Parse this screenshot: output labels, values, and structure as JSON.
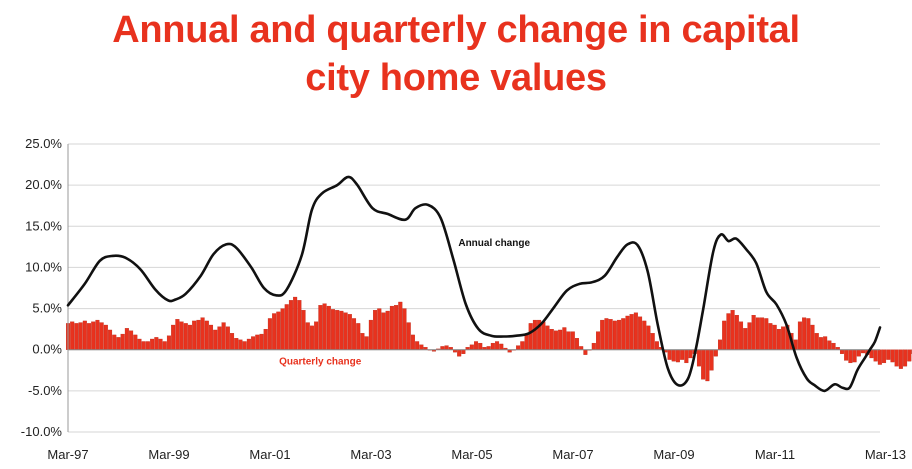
{
  "chart_data": {
    "type": "bar+line",
    "title": "Annual and quarterly change in capital city home values",
    "title_lines": [
      "Annual and quarterly change in",
      "city home values"
    ],
    "title_line1_main": "Annual and quarterly change in",
    "title_line1_end": " capital",
    "x_tick_labels": [
      "Mar-97",
      "Mar-99",
      "Mar-01",
      "Mar-03",
      "Mar-05",
      "Mar-07",
      "Mar-09",
      "Mar-11",
      "Mar-13"
    ],
    "x_range": [
      1997.17,
      2013.25
    ],
    "y_tick_labels": [
      "25.0%",
      "20.0%",
      "15.0%",
      "10.0%",
      "5.0%",
      "0.0%",
      "-5.0%",
      "-10.0%"
    ],
    "ylim": [
      -10,
      25
    ],
    "grid": "horizontal",
    "annotations": [
      {
        "text": "Annual change",
        "color": "#111111"
      },
      {
        "text": "Quarterly change",
        "color": "#e8321e"
      }
    ],
    "series": [
      {
        "name": "Annual change",
        "type": "line",
        "color": "#111111",
        "points": [
          [
            1997.17,
            5.4
          ],
          [
            1997.5,
            8.0
          ],
          [
            1997.8,
            10.8
          ],
          [
            1998.05,
            11.4
          ],
          [
            1998.3,
            11.2
          ],
          [
            1998.6,
            9.8
          ],
          [
            1998.9,
            7.3
          ],
          [
            1999.15,
            6.0
          ],
          [
            1999.3,
            6.1
          ],
          [
            1999.5,
            6.8
          ],
          [
            1999.8,
            9.0
          ],
          [
            2000.05,
            11.6
          ],
          [
            2000.3,
            12.8
          ],
          [
            2000.5,
            12.4
          ],
          [
            2000.8,
            10.0
          ],
          [
            2001.05,
            7.5
          ],
          [
            2001.3,
            6.6
          ],
          [
            2001.5,
            7.3
          ],
          [
            2001.8,
            11.5
          ],
          [
            2002.0,
            17.0
          ],
          [
            2002.2,
            19.0
          ],
          [
            2002.5,
            20.0
          ],
          [
            2002.72,
            21.0
          ],
          [
            2002.9,
            20.0
          ],
          [
            2003.2,
            17.2
          ],
          [
            2003.5,
            16.5
          ],
          [
            2003.85,
            15.8
          ],
          [
            2004.05,
            17.2
          ],
          [
            2004.3,
            17.6
          ],
          [
            2004.55,
            16.0
          ],
          [
            2004.8,
            11.0
          ],
          [
            2005.05,
            5.5
          ],
          [
            2005.3,
            2.5
          ],
          [
            2005.55,
            1.7
          ],
          [
            2005.8,
            1.6
          ],
          [
            2006.05,
            1.7
          ],
          [
            2006.3,
            2.0
          ],
          [
            2006.55,
            3.2
          ],
          [
            2006.8,
            5.2
          ],
          [
            2007.05,
            7.2
          ],
          [
            2007.3,
            8.0
          ],
          [
            2007.55,
            8.2
          ],
          [
            2007.8,
            9.0
          ],
          [
            2008.05,
            11.3
          ],
          [
            2008.25,
            12.8
          ],
          [
            2008.45,
            12.7
          ],
          [
            2008.65,
            9.5
          ],
          [
            2008.85,
            3.0
          ],
          [
            2009.05,
            -2.3
          ],
          [
            2009.25,
            -4.3
          ],
          [
            2009.45,
            -3.5
          ],
          [
            2009.6,
            0.0
          ],
          [
            2009.75,
            5.0
          ],
          [
            2009.95,
            12.0
          ],
          [
            2010.1,
            14.0
          ],
          [
            2010.25,
            13.2
          ],
          [
            2010.4,
            13.5
          ],
          [
            2010.6,
            12.2
          ],
          [
            2010.8,
            10.5
          ],
          [
            2011.0,
            7.0
          ],
          [
            2011.2,
            5.5
          ],
          [
            2011.4,
            3.0
          ],
          [
            2011.6,
            -1.0
          ],
          [
            2011.8,
            -3.5
          ],
          [
            2011.95,
            -4.3
          ],
          [
            2012.15,
            -5.0
          ],
          [
            2012.35,
            -4.2
          ],
          [
            2012.5,
            -4.6
          ],
          [
            2012.65,
            -4.6
          ],
          [
            2012.8,
            -2.5
          ],
          [
            2012.95,
            -1.0
          ],
          [
            2013.05,
            0.0
          ],
          [
            2013.15,
            1.0
          ],
          [
            2013.25,
            2.7
          ]
        ]
      },
      {
        "name": "Quarterly change",
        "type": "bar",
        "color": "#e8321e",
        "start": 1997.17,
        "step": 0.0833,
        "values": [
          3.2,
          3.4,
          3.2,
          3.3,
          3.5,
          3.2,
          3.4,
          3.6,
          3.3,
          3.0,
          2.4,
          1.8,
          1.5,
          1.9,
          2.6,
          2.3,
          1.8,
          1.3,
          1.0,
          1.0,
          1.3,
          1.5,
          1.3,
          1.0,
          1.7,
          3.0,
          3.7,
          3.4,
          3.2,
          3.0,
          3.5,
          3.6,
          3.9,
          3.5,
          3.0,
          2.4,
          2.8,
          3.3,
          2.8,
          2.0,
          1.4,
          1.2,
          1.0,
          1.3,
          1.6,
          1.8,
          1.9,
          2.5,
          3.8,
          4.4,
          4.6,
          5.0,
          5.5,
          6.0,
          6.4,
          6.0,
          4.8,
          3.3,
          2.9,
          3.4,
          5.4,
          5.6,
          5.3,
          4.9,
          4.8,
          4.7,
          4.5,
          4.3,
          3.8,
          3.2,
          2.0,
          1.6,
          3.6,
          4.8,
          5.0,
          4.5,
          4.7,
          5.3,
          5.4,
          5.8,
          5.0,
          3.3,
          1.8,
          1.0,
          0.6,
          0.3,
          0.0,
          -0.2,
          0.1,
          0.4,
          0.5,
          0.3,
          -0.3,
          -0.8,
          -0.5,
          0.3,
          0.6,
          1.0,
          0.8,
          0.3,
          0.4,
          0.8,
          1.0,
          0.7,
          0.2,
          -0.3,
          0.0,
          0.5,
          1.0,
          1.8,
          3.2,
          3.6,
          3.6,
          3.4,
          2.9,
          2.5,
          2.3,
          2.4,
          2.7,
          2.2,
          2.2,
          1.4,
          0.4,
          -0.6,
          0.0,
          0.8,
          2.2,
          3.6,
          3.8,
          3.7,
          3.5,
          3.6,
          3.8,
          4.1,
          4.3,
          4.5,
          4.0,
          3.5,
          2.9,
          2.0,
          1.0,
          0.3,
          -0.3,
          -1.2,
          -1.4,
          -1.5,
          -1.2,
          -1.6,
          -1.0,
          -0.5,
          -2.0,
          -3.6,
          -3.8,
          -2.5,
          -0.8,
          1.2,
          3.5,
          4.4,
          4.8,
          4.2,
          3.4,
          2.6,
          3.3,
          4.2,
          3.9,
          3.9,
          3.8,
          3.2,
          3.0,
          2.5,
          2.8,
          3.0,
          2.0,
          1.2,
          3.4,
          3.9,
          3.8,
          3.0,
          2.0,
          1.5,
          1.6,
          1.1,
          0.8,
          0.3,
          -0.5,
          -1.3,
          -1.6,
          -1.5,
          -0.8,
          -0.4,
          -0.6,
          -1.0,
          -1.4,
          -1.8,
          -1.6,
          -1.2,
          -1.5,
          -2.0,
          -2.3,
          -2.0,
          -1.4,
          -0.5,
          0.0,
          0.3,
          -0.5,
          -1.6,
          -2.4,
          -2.0,
          -0.3,
          0.5,
          1.0,
          1.5,
          2.0,
          1.6,
          0.8,
          0.2,
          -0.3,
          0.4,
          1.5,
          2.0,
          1.6,
          1.2,
          2.2
        ]
      }
    ]
  }
}
